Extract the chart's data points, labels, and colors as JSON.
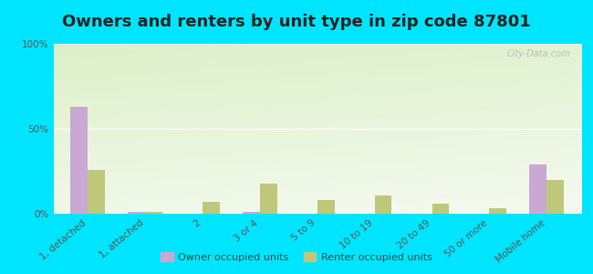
{
  "title": "Owners and renters by unit type in zip code 87801",
  "categories": [
    "1, detached",
    "1, attached",
    "2",
    "3 or 4",
    "5 to 9",
    "10 to 19",
    "20 to 49",
    "50 or more",
    "Mobile home"
  ],
  "owner_values": [
    63,
    1,
    0,
    1,
    0,
    0,
    0,
    0,
    29
  ],
  "renter_values": [
    26,
    1,
    7,
    18,
    8,
    11,
    6,
    3,
    20
  ],
  "owner_color": "#c9a8d4",
  "renter_color": "#bfc87a",
  "background_outer": "#00e5ff",
  "yticks": [
    0,
    50,
    100
  ],
  "ylim": [
    0,
    100
  ],
  "legend_owner": "Owner occupied units",
  "legend_renter": "Renter occupied units",
  "watermark": "City-Data.com",
  "title_fontsize": 13,
  "tick_fontsize": 7.5,
  "bar_width": 0.3
}
